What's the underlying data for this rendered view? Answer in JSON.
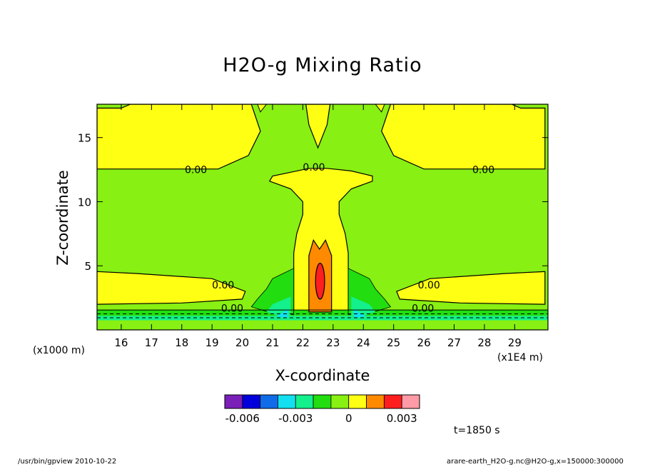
{
  "chart_data": {
    "type": "heatmap",
    "title": "H2O-g Mixing Ratio",
    "xlabel": "X-coordinate",
    "ylabel": "Z-coordinate",
    "x_unit": "(x1E4 m)",
    "y_unit": "(x1000 m)",
    "xlim": [
      15.2,
      30.1
    ],
    "ylim": [
      0,
      17.6
    ],
    "x_ticks": [
      16,
      17,
      18,
      19,
      20,
      21,
      22,
      23,
      24,
      25,
      26,
      27,
      28,
      29
    ],
    "y_ticks": [
      5,
      10,
      15
    ],
    "contour_labels": [
      {
        "text": "0.00",
        "x": 18.1,
        "y": 12.4
      },
      {
        "text": "0.00",
        "x": 22.0,
        "y": 12.6
      },
      {
        "text": "0.00",
        "x": 27.6,
        "y": 12.4
      },
      {
        "text": "0.00",
        "x": 19.0,
        "y": 3.4
      },
      {
        "text": "0.00",
        "x": 25.8,
        "y": 3.4
      },
      {
        "text": "0.00",
        "x": 19.3,
        "y": 1.6
      },
      {
        "text": "0.00",
        "x": 25.6,
        "y": 1.6
      }
    ],
    "colorbar": {
      "colors": [
        "#7a1fb8",
        "#0000dd",
        "#0f6be8",
        "#12e0f0",
        "#14f08c",
        "#22dd10",
        "#88f012",
        "#ffff14",
        "#ff8a00",
        "#ff1e1e",
        "#ff9aa6"
      ],
      "tick_labels": [
        "-0.006",
        "-0.003",
        "0",
        "0.003"
      ],
      "tick_values": [
        -0.006,
        -0.003,
        0,
        0.003
      ]
    },
    "time_label": "t=1850 s"
  },
  "footer": {
    "left": "/usr/bin/gpview   2010-10-22",
    "right": "arare-earth_H2O-g.nc@H2O-g,x=150000:300000"
  }
}
